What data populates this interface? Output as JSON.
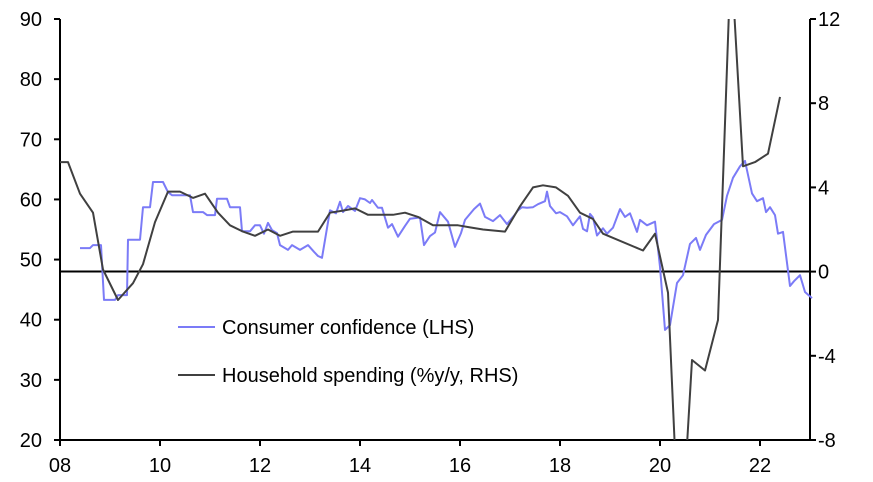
{
  "chart_data": {
    "type": "line",
    "title": "",
    "xlabel": "",
    "ylabel_left": "",
    "ylabel_right": "",
    "xlim": [
      2008,
      2023.1
    ],
    "ylim_left": [
      20,
      90
    ],
    "ylim_right": [
      -8,
      12
    ],
    "x_ticks": [
      {
        "v": 2008,
        "label": "08"
      },
      {
        "v": 2010,
        "label": "10"
      },
      {
        "v": 2012,
        "label": "12"
      },
      {
        "v": 2014,
        "label": "14"
      },
      {
        "v": 2016,
        "label": "16"
      },
      {
        "v": 2018,
        "label": "18"
      },
      {
        "v": 2020,
        "label": "20"
      },
      {
        "v": 2022,
        "label": "22"
      }
    ],
    "y_left_ticks": [
      {
        "v": 20,
        "label": "20"
      },
      {
        "v": 30,
        "label": "30"
      },
      {
        "v": 40,
        "label": "40"
      },
      {
        "v": 50,
        "label": "50"
      },
      {
        "v": 60,
        "label": "60"
      },
      {
        "v": 70,
        "label": "70"
      },
      {
        "v": 80,
        "label": "80"
      },
      {
        "v": 90,
        "label": "90"
      }
    ],
    "y_right_ticks": [
      {
        "v": -8,
        "label": "-8"
      },
      {
        "v": -4,
        "label": "-4"
      },
      {
        "v": 0,
        "label": "0"
      },
      {
        "v": 4,
        "label": "4"
      },
      {
        "v": 8,
        "label": "8"
      },
      {
        "v": 12,
        "label": "12"
      }
    ],
    "legend_position": "bottom-left",
    "series": [
      {
        "name": "Consumer confidence (LHS)",
        "axis": "left",
        "color": "#7b7bf7",
        "points": [
          [
            2008.4,
            51.9
          ],
          [
            2008.6,
            51.9
          ],
          [
            2008.66,
            52.4
          ],
          [
            2008.82,
            52.4
          ],
          [
            2008.88,
            43.3
          ],
          [
            2009.1,
            43.3
          ],
          [
            2009.16,
            44.1
          ],
          [
            2009.34,
            44.1
          ],
          [
            2009.36,
            53.3
          ],
          [
            2009.6,
            53.3
          ],
          [
            2009.66,
            58.7
          ],
          [
            2009.8,
            58.7
          ],
          [
            2009.86,
            62.9
          ],
          [
            2010.06,
            62.9
          ],
          [
            2010.16,
            61.2
          ],
          [
            2010.24,
            60.7
          ],
          [
            2010.6,
            60.7
          ],
          [
            2010.66,
            57.9
          ],
          [
            2010.86,
            57.9
          ],
          [
            2010.94,
            57.4
          ],
          [
            2011.1,
            57.4
          ],
          [
            2011.14,
            60.1
          ],
          [
            2011.34,
            60.1
          ],
          [
            2011.4,
            58.7
          ],
          [
            2011.6,
            58.7
          ],
          [
            2011.64,
            54.7
          ],
          [
            2011.8,
            54.7
          ],
          [
            2011.9,
            55.7
          ],
          [
            2012.0,
            55.7
          ],
          [
            2012.08,
            54.3
          ],
          [
            2012.16,
            56.1
          ],
          [
            2012.24,
            54.9
          ],
          [
            2012.34,
            54.4
          ],
          [
            2012.4,
            52.4
          ],
          [
            2012.56,
            51.6
          ],
          [
            2012.64,
            52.4
          ],
          [
            2012.8,
            51.6
          ],
          [
            2012.96,
            52.4
          ],
          [
            2013.08,
            51.3
          ],
          [
            2013.16,
            50.6
          ],
          [
            2013.24,
            50.3
          ],
          [
            2013.4,
            58.2
          ],
          [
            2013.52,
            57.7
          ],
          [
            2013.6,
            59.6
          ],
          [
            2013.66,
            57.9
          ],
          [
            2013.76,
            58.9
          ],
          [
            2013.9,
            58.1
          ],
          [
            2014.0,
            60.2
          ],
          [
            2014.1,
            60.0
          ],
          [
            2014.2,
            59.4
          ],
          [
            2014.24,
            59.9
          ],
          [
            2014.36,
            58.6
          ],
          [
            2014.44,
            58.6
          ],
          [
            2014.56,
            55.3
          ],
          [
            2014.64,
            55.9
          ],
          [
            2014.76,
            53.8
          ],
          [
            2014.9,
            55.6
          ],
          [
            2015.0,
            56.8
          ],
          [
            2015.2,
            57.0
          ],
          [
            2015.28,
            52.4
          ],
          [
            2015.4,
            53.9
          ],
          [
            2015.5,
            54.5
          ],
          [
            2015.6,
            57.9
          ],
          [
            2015.76,
            56.3
          ],
          [
            2015.9,
            52.1
          ],
          [
            2016.02,
            54.4
          ],
          [
            2016.1,
            56.6
          ],
          [
            2016.2,
            57.6
          ],
          [
            2016.28,
            58.4
          ],
          [
            2016.4,
            59.3
          ],
          [
            2016.5,
            57.1
          ],
          [
            2016.66,
            56.4
          ],
          [
            2016.8,
            57.4
          ],
          [
            2016.94,
            55.9
          ],
          [
            2017.08,
            57.3
          ],
          [
            2017.16,
            58.2
          ],
          [
            2017.24,
            58.7
          ],
          [
            2017.34,
            58.6
          ],
          [
            2017.46,
            58.7
          ],
          [
            2017.56,
            59.2
          ],
          [
            2017.7,
            59.7
          ],
          [
            2017.74,
            61.3
          ],
          [
            2017.8,
            58.9
          ],
          [
            2017.92,
            57.7
          ],
          [
            2018.0,
            57.9
          ],
          [
            2018.14,
            57.2
          ],
          [
            2018.26,
            55.7
          ],
          [
            2018.4,
            57.2
          ],
          [
            2018.46,
            55.1
          ],
          [
            2018.54,
            54.7
          ],
          [
            2018.6,
            57.6
          ],
          [
            2018.66,
            57.0
          ],
          [
            2018.74,
            54.0
          ],
          [
            2018.86,
            55.2
          ],
          [
            2018.94,
            54.3
          ],
          [
            2019.06,
            55.3
          ],
          [
            2019.2,
            58.4
          ],
          [
            2019.3,
            57.1
          ],
          [
            2019.4,
            57.7
          ],
          [
            2019.54,
            54.6
          ],
          [
            2019.6,
            56.6
          ],
          [
            2019.74,
            55.7
          ],
          [
            2019.9,
            56.3
          ],
          [
            2020.0,
            48.8
          ],
          [
            2020.1,
            38.3
          ],
          [
            2020.2,
            39.1
          ],
          [
            2020.34,
            46.1
          ],
          [
            2020.46,
            47.4
          ],
          [
            2020.6,
            52.6
          ],
          [
            2020.72,
            53.6
          ],
          [
            2020.8,
            51.6
          ],
          [
            2020.92,
            54.1
          ],
          [
            2021.08,
            55.9
          ],
          [
            2021.24,
            56.6
          ],
          [
            2021.34,
            60.6
          ],
          [
            2021.46,
            63.6
          ],
          [
            2021.6,
            65.5
          ],
          [
            2021.7,
            66.4
          ],
          [
            2021.84,
            61.0
          ],
          [
            2021.94,
            59.7
          ],
          [
            2022.06,
            60.2
          ],
          [
            2022.12,
            57.9
          ],
          [
            2022.2,
            58.7
          ],
          [
            2022.3,
            57.4
          ],
          [
            2022.36,
            54.3
          ],
          [
            2022.46,
            54.6
          ],
          [
            2022.6,
            45.6
          ],
          [
            2022.68,
            46.4
          ],
          [
            2022.8,
            47.4
          ],
          [
            2022.9,
            44.6
          ],
          [
            2023.04,
            43.6
          ]
        ]
      },
      {
        "name": "Household spending (%y/y, RHS)",
        "axis": "right",
        "color": "#404040",
        "points": [
          [
            2008.0,
            5.2
          ],
          [
            2008.16,
            5.2
          ],
          [
            2008.4,
            3.7
          ],
          [
            2008.66,
            2.8
          ],
          [
            2008.86,
            0.1
          ],
          [
            2009.16,
            -1.35
          ],
          [
            2009.46,
            -0.55
          ],
          [
            2009.66,
            0.35
          ],
          [
            2009.9,
            2.35
          ],
          [
            2010.16,
            3.8
          ],
          [
            2010.4,
            3.8
          ],
          [
            2010.66,
            3.5
          ],
          [
            2010.9,
            3.7
          ],
          [
            2011.16,
            2.8
          ],
          [
            2011.4,
            2.2
          ],
          [
            2011.66,
            1.9
          ],
          [
            2011.9,
            1.7
          ],
          [
            2012.16,
            2.0
          ],
          [
            2012.4,
            1.7
          ],
          [
            2012.66,
            1.9
          ],
          [
            2013.16,
            1.9
          ],
          [
            2013.4,
            2.8
          ],
          [
            2013.66,
            2.9
          ],
          [
            2013.9,
            3.0
          ],
          [
            2014.16,
            2.7
          ],
          [
            2014.66,
            2.7
          ],
          [
            2014.9,
            2.8
          ],
          [
            2015.16,
            2.6
          ],
          [
            2015.46,
            2.2
          ],
          [
            2015.96,
            2.2
          ],
          [
            2016.2,
            2.1
          ],
          [
            2016.46,
            2.0
          ],
          [
            2016.9,
            1.9
          ],
          [
            2017.2,
            3.1
          ],
          [
            2017.46,
            4.0
          ],
          [
            2017.66,
            4.1
          ],
          [
            2017.92,
            4.0
          ],
          [
            2018.16,
            3.6
          ],
          [
            2018.4,
            2.8
          ],
          [
            2018.66,
            2.5
          ],
          [
            2018.86,
            1.8
          ],
          [
            2019.66,
            1.0
          ],
          [
            2019.9,
            1.8
          ],
          [
            2020.16,
            -1.0
          ],
          [
            2020.4,
            -14
          ],
          [
            2020.64,
            -4.2
          ],
          [
            2020.9,
            -4.7
          ],
          [
            2021.16,
            -2.3
          ],
          [
            2021.42,
            15
          ],
          [
            2021.66,
            5.0
          ],
          [
            2021.9,
            5.2
          ],
          [
            2022.16,
            5.6
          ],
          [
            2022.4,
            8.3
          ]
        ]
      }
    ]
  }
}
